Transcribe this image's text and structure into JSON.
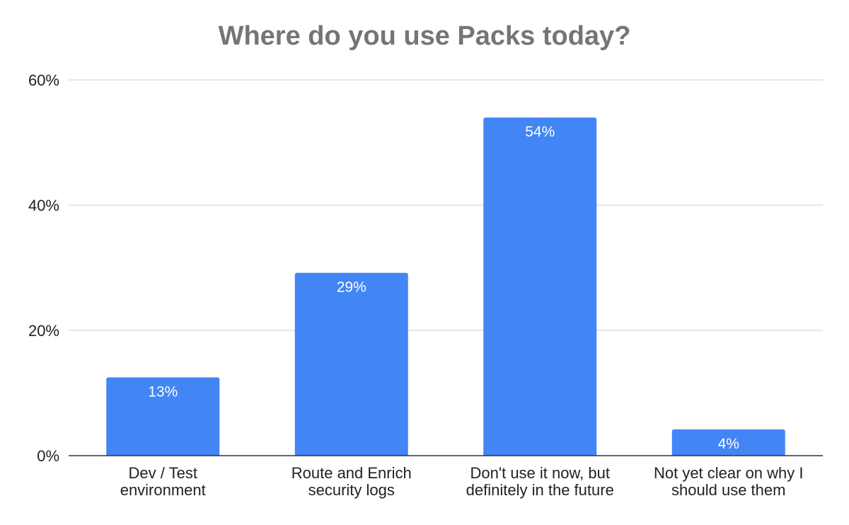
{
  "chart_data": {
    "type": "bar",
    "title": "Where do you use Packs today?",
    "categories": [
      [
        "Dev / Test",
        "environment"
      ],
      [
        "Route and Enrich",
        "security logs"
      ],
      [
        "Don't use it now, but",
        "definitely in the future"
      ],
      [
        "Not yet clear on why I",
        "should use them"
      ]
    ],
    "values": [
      12.5,
      29.2,
      54.0,
      4.2
    ],
    "data_labels": [
      "13%",
      "29%",
      "54%",
      "4%"
    ],
    "ylim": [
      0,
      60
    ],
    "yticks": [
      0,
      20,
      40,
      60
    ],
    "ytick_labels": [
      "0%",
      "20%",
      "40%",
      "60%"
    ],
    "xlabel": "",
    "ylabel": "",
    "grid": true,
    "legend": "none",
    "colors": {
      "bar": "#4285F4",
      "grid": "#CCCCCC",
      "axis": "#333333",
      "title": "#757575",
      "tick_text": "#222222",
      "data_label": "#FFFFFF"
    }
  }
}
